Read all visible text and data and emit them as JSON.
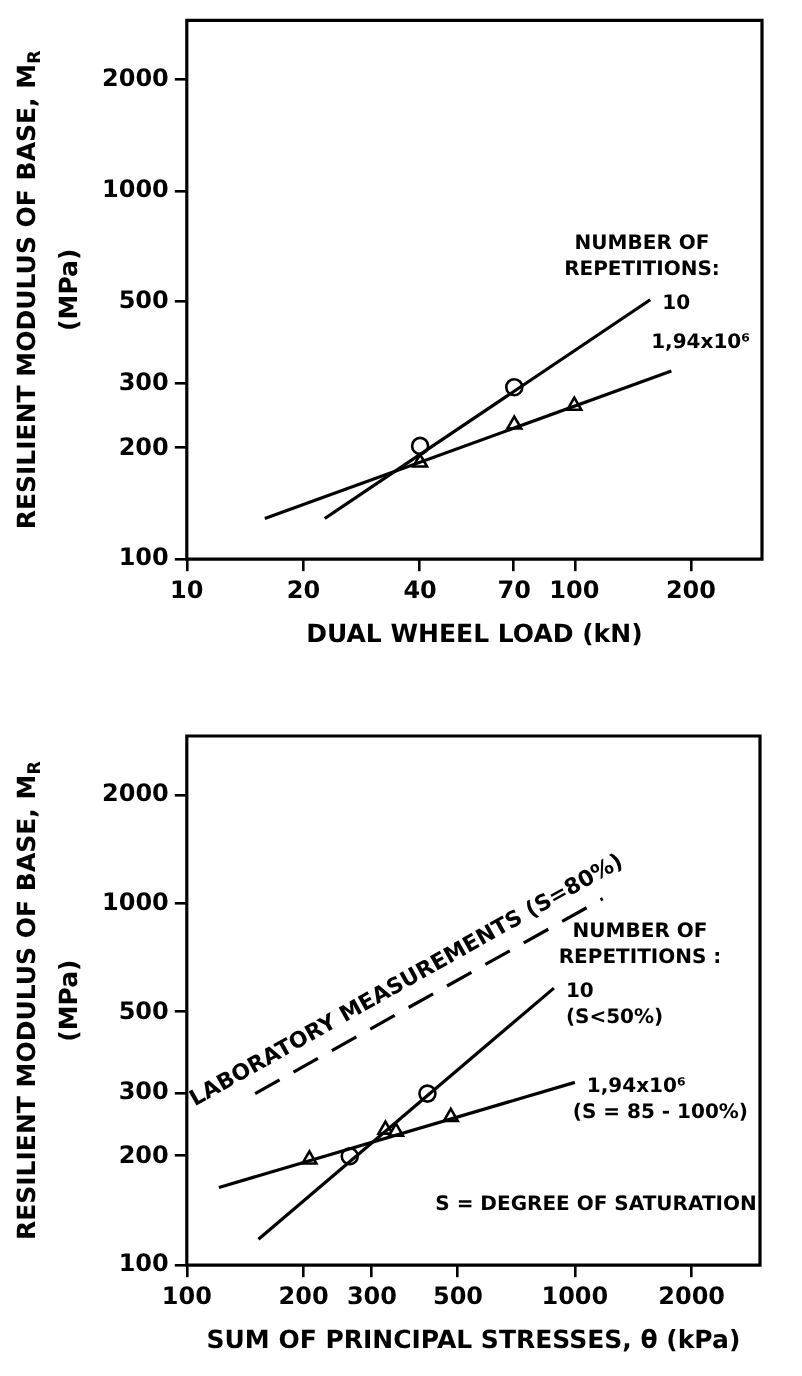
{
  "chart_data": [
    {
      "type": "line",
      "xlabel": "DUAL WHEEL LOAD (kN)",
      "ylabel": "RESILIENT MODULUS OF BASE, M$_{R}$\n(MPa)",
      "log": "xy",
      "grid": false,
      "legend": false,
      "xlim": [
        10,
        305
      ],
      "ylim": [
        100,
        2900
      ],
      "xticks": [
        10,
        20,
        40,
        70,
        100,
        200
      ],
      "yticks": [
        100,
        200,
        300,
        500,
        1000,
        2000
      ],
      "series": [
        {
          "type": "line",
          "name": "10",
          "color": "#000000",
          "marker": "none",
          "line_style": "solid",
          "x": [
            22.7,
            157
          ],
          "values": [
            129,
            506
          ]
        },
        {
          "type": "line",
          "name": "1,94x10⁶",
          "color": "#000000",
          "marker": "none",
          "line_style": "solid",
          "x": [
            15.9,
            178
          ],
          "values": [
            129,
            324
          ]
        },
        {
          "type": "scatter",
          "color": "#000000",
          "marker": "circle",
          "x": [
            40,
            70
          ],
          "values": [
            203,
            293
          ]
        },
        {
          "type": "scatter",
          "color": "#000000",
          "marker": "triangle",
          "x": [
            40,
            70,
            100
          ],
          "values": [
            183,
            232,
            261
          ]
        }
      ],
      "legend_title": "NUMBER OF REPETITIONS:"
    },
    {
      "type": "line",
      "xlabel": "SUM OF PRINCIPAL STRESSES, θ (kPa)",
      "ylabel": "RESILIENT MODULUS OF BASE, M$_{R}$\n(MPa)",
      "log": "xy",
      "grid": false,
      "legend": false,
      "xlim": [
        100,
        3000
      ],
      "ylim": [
        100,
        2900
      ],
      "xticks": [
        100,
        200,
        300,
        500,
        1000,
        2000
      ],
      "yticks": [
        100,
        200,
        300,
        500,
        1000,
        2000
      ],
      "series": [
        {
          "type": "line",
          "name": "10 (S<50%)",
          "color": "#000000",
          "marker": "none",
          "line_style": "solid",
          "x": [
            153,
            883
          ],
          "values": [
            118,
            583
          ]
        },
        {
          "type": "line",
          "name": "1,94x10⁶ (S = 85 - 100%)",
          "color": "#000000",
          "marker": "none",
          "line_style": "solid",
          "x": [
            121,
            1000
          ],
          "values": [
            164,
            320
          ]
        },
        {
          "type": "line",
          "name": "LABORATORY MEASUREMENTS (S=80%)",
          "color": "#000000",
          "marker": "none",
          "line_style": "dashed",
          "x": [
            150,
            1180
          ],
          "values": [
            298,
            1030
          ]
        },
        {
          "type": "scatter",
          "color": "#000000",
          "marker": "circle",
          "x": [
            263,
            417
          ],
          "values": [
            200,
            298
          ]
        },
        {
          "type": "scatter",
          "color": "#000000",
          "marker": "triangle",
          "x": [
            207,
            325,
            346,
            479
          ],
          "values": [
            196,
            237,
            234,
            257
          ]
        }
      ],
      "legend_title": "NUMBER OF REPETITIONS :",
      "annotations": [
        "S = DEGREE OF SATURATION"
      ]
    }
  ]
}
